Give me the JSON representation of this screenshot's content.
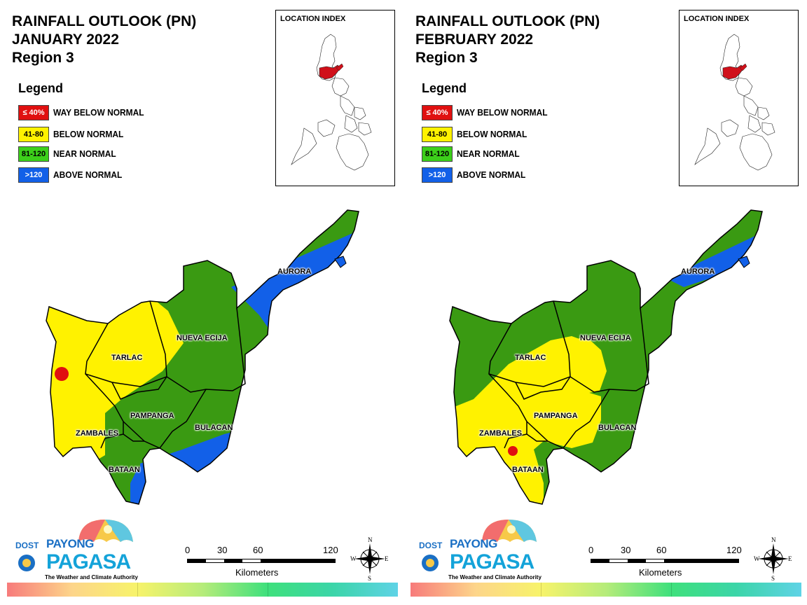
{
  "colors": {
    "way_below": "#e01010",
    "below": "#fff200",
    "near": "#3a9a12",
    "above": "#1260e8"
  },
  "legend": {
    "title": "Legend",
    "items": [
      {
        "code": "≤ 40%",
        "label": "WAY BELOW NORMAL",
        "bg": "#e01010",
        "fg": "#ffffff"
      },
      {
        "code": "41-80",
        "label": "BELOW NORMAL",
        "bg": "#fff200",
        "fg": "#000000"
      },
      {
        "code": "81-120",
        "label": "NEAR NORMAL",
        "bg": "#3ccf1a",
        "fg": "#000000"
      },
      {
        "code": ">120",
        "label": "ABOVE NORMAL",
        "bg": "#1260e8",
        "fg": "#ffffff"
      }
    ]
  },
  "location_index_title": "LOCATION INDEX",
  "maps": [
    {
      "title_line1": "RAINFALL OUTLOOK (PN)",
      "title_line2": "JANUARY 2022",
      "title_line3": "Region 3",
      "provinces": {
        "aurora": "AURORA",
        "nueva_ecija": "NUEVA ECIJA",
        "tarlac": "TARLAC",
        "pampanga": "PAMPANGA",
        "zambales": "ZAMBALES",
        "bulacan": "BULACAN",
        "bataan": "BATAAN"
      }
    },
    {
      "title_line1": "RAINFALL OUTLOOK (PN)",
      "title_line2": "FEBRUARY 2022",
      "title_line3": "Region 3",
      "provinces": {
        "aurora": "AURORA",
        "nueva_ecija": "NUEVA ECIJA",
        "tarlac": "TARLAC",
        "pampanga": "PAMPANGA",
        "zambales": "ZAMBALES",
        "bulacan": "BULACAN",
        "bataan": "BATAAN"
      }
    }
  ],
  "scale": {
    "ticks": [
      "0",
      "30",
      "60",
      "120"
    ],
    "unit": "Kilometers"
  },
  "compass": {
    "n": "N",
    "e": "E",
    "s": "S",
    "w": "W"
  },
  "logo": {
    "dost": "DOST",
    "payong": "PAYONG",
    "pagasa": "PAGASA",
    "tagline": "The Weather and Climate Authority"
  }
}
